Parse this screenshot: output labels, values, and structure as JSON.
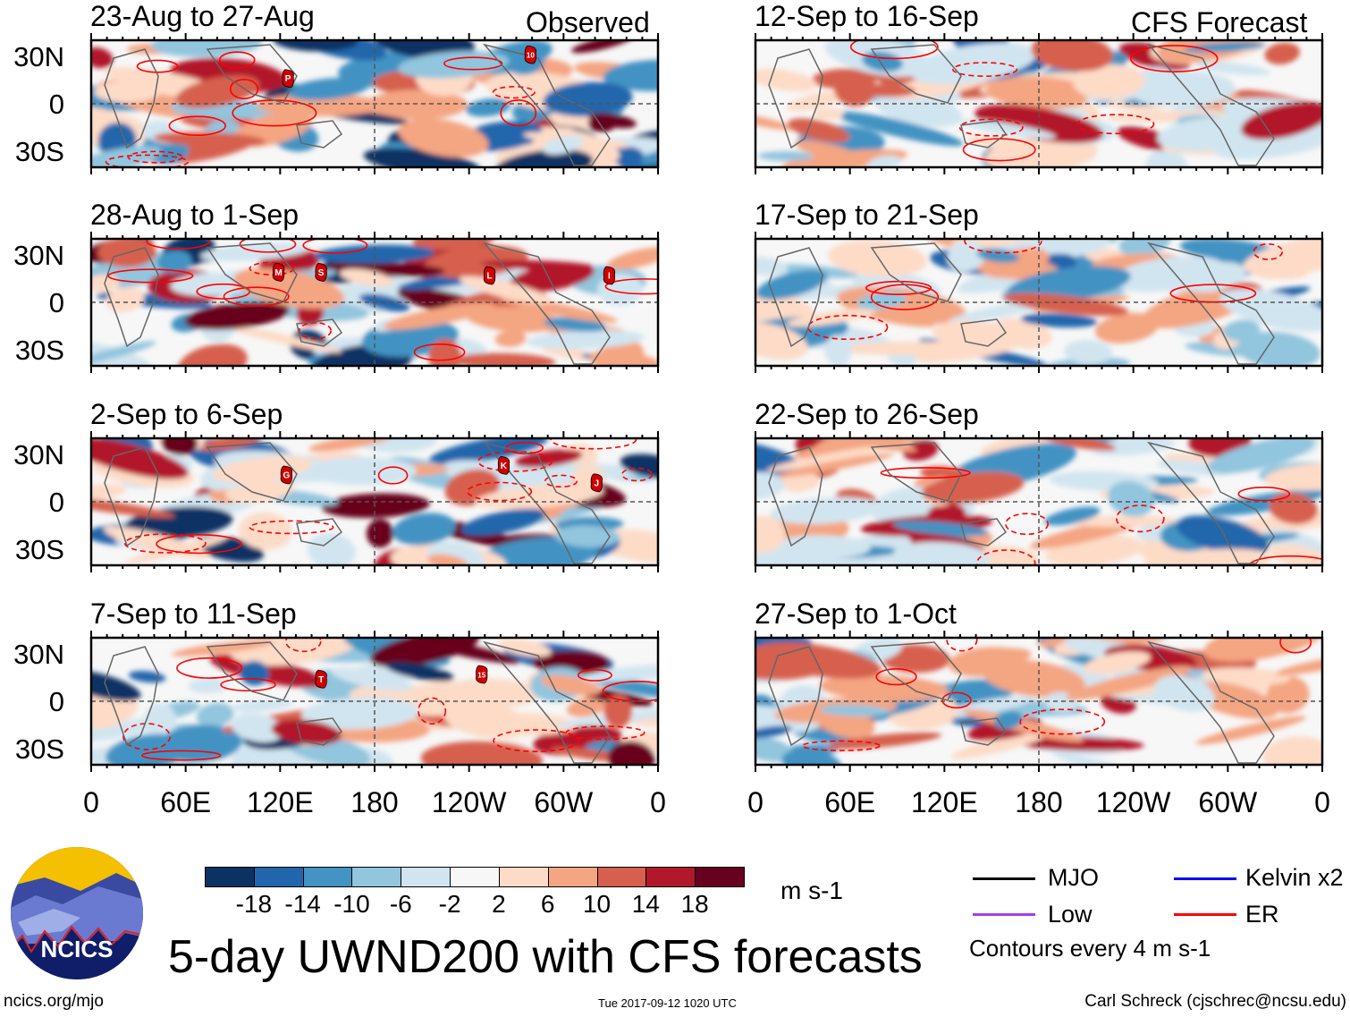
{
  "headers": {
    "left": "Observed",
    "right": "CFS Forecast"
  },
  "lat_labels": [
    "30N",
    "0",
    "30S"
  ],
  "lon_labels": [
    "0",
    "60E",
    "120E",
    "180",
    "120W",
    "60W",
    "0"
  ],
  "panels": [
    {
      "title": "23-Aug to 27-Aug",
      "seed": 3,
      "storms": [
        {
          "label": "P",
          "lon": 125,
          "lat": 16
        },
        {
          "label": "10",
          "lon": 279,
          "lat": 31
        }
      ]
    },
    {
      "title": "28-Aug to 1-Sep",
      "seed": 7,
      "storms": [
        {
          "label": "M",
          "lon": 119,
          "lat": 19
        },
        {
          "label": "S",
          "lon": 146,
          "lat": 19
        },
        {
          "label": "L",
          "lon": 253,
          "lat": 17
        },
        {
          "label": "I",
          "lon": 329,
          "lat": 17
        }
      ]
    },
    {
      "title": "2-Sep to 6-Sep",
      "seed": 11,
      "storms": [
        {
          "label": "G",
          "lon": 124,
          "lat": 17
        },
        {
          "label": "K",
          "lon": 262,
          "lat": 23
        },
        {
          "label": "J",
          "lon": 321,
          "lat": 12
        }
      ]
    },
    {
      "title": "7-Sep to 11-Sep",
      "seed": 13,
      "storms": [
        {
          "label": "T",
          "lon": 146,
          "lat": 14
        },
        {
          "label": "15",
          "lon": 248,
          "lat": 17
        }
      ]
    },
    {
      "title": "12-Sep to 16-Sep",
      "seed": 17,
      "storms": []
    },
    {
      "title": "17-Sep to 21-Sep",
      "seed": 19,
      "storms": []
    },
    {
      "title": "22-Sep to 26-Sep",
      "seed": 23,
      "storms": []
    },
    {
      "title": "27-Sep to 1-Oct",
      "seed": 29,
      "storms": []
    }
  ],
  "colorbar": {
    "colors": [
      "#0a3263",
      "#2166ac",
      "#4393c3",
      "#92c5de",
      "#d1e5f0",
      "#f7f7f7",
      "#fddbc7",
      "#f4a582",
      "#d6604d",
      "#b2182b",
      "#67001f"
    ],
    "labels": [
      "-18",
      "-14",
      "-10",
      "-6",
      "-2",
      "2",
      "6",
      "10",
      "14",
      "18"
    ],
    "units": "m s-1"
  },
  "legend": {
    "items": [
      {
        "label": "MJO",
        "color": "#000000"
      },
      {
        "label": "Kelvin x2",
        "color": "#0000ff"
      },
      {
        "label": "Low",
        "color": "#a040f0"
      },
      {
        "label": "ER",
        "color": "#ff0000"
      }
    ],
    "note": "Contours every 4 m s-1"
  },
  "title": "5-day UWND200 with CFS forecasts",
  "logo_text": "NCICS",
  "footer": {
    "left": "ncics.org/mjo",
    "center": "Tue 2017-09-12 1020 UTC",
    "right": "Carl Schreck (cjschrec@ncsu.edu)"
  }
}
